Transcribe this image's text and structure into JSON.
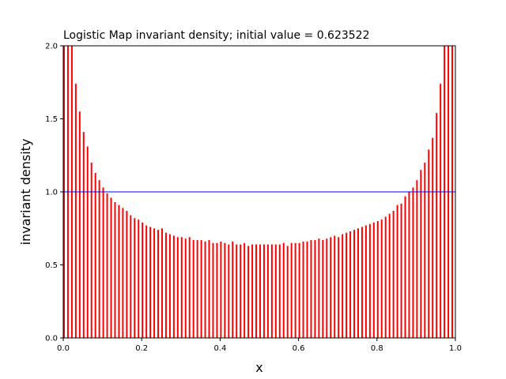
{
  "chart_data": {
    "type": "bar",
    "title": "Logistic Map invariant density; initial value = 0.623522",
    "xlabel": "x",
    "ylabel": "invariant density",
    "xlim": [
      0,
      1
    ],
    "ylim": [
      0,
      2
    ],
    "xticks": [
      "0.0",
      "0.2",
      "0.4",
      "0.6",
      "0.8",
      "1.0"
    ],
    "yticks": [
      "0.0",
      "0.5",
      "1.0",
      "1.5",
      "2.0"
    ],
    "bar_color": "#ff0000",
    "bar_width": 0.004,
    "reference_line": {
      "y": 1.0,
      "color": "#0000ff"
    },
    "x": [
      0.0,
      0.01,
      0.02,
      0.03,
      0.04,
      0.05,
      0.06,
      0.07,
      0.08,
      0.09,
      0.1,
      0.11,
      0.12,
      0.13,
      0.14,
      0.15,
      0.16,
      0.17,
      0.18,
      0.19,
      0.2,
      0.21,
      0.22,
      0.23,
      0.24,
      0.25,
      0.26,
      0.27,
      0.28,
      0.29,
      0.3,
      0.31,
      0.32,
      0.33,
      0.34,
      0.35,
      0.36,
      0.37,
      0.38,
      0.39,
      0.4,
      0.41,
      0.42,
      0.43,
      0.44,
      0.45,
      0.46,
      0.47,
      0.48,
      0.49,
      0.5,
      0.51,
      0.52,
      0.53,
      0.54,
      0.55,
      0.56,
      0.57,
      0.58,
      0.59,
      0.6,
      0.61,
      0.62,
      0.63,
      0.64,
      0.65,
      0.66,
      0.67,
      0.68,
      0.69,
      0.7,
      0.71,
      0.72,
      0.73,
      0.74,
      0.75,
      0.76,
      0.77,
      0.78,
      0.79,
      0.8,
      0.81,
      0.82,
      0.83,
      0.84,
      0.85,
      0.86,
      0.87,
      0.88,
      0.89,
      0.9,
      0.91,
      0.92,
      0.93,
      0.94,
      0.95,
      0.96,
      0.97,
      0.98,
      0.99
    ],
    "values": [
      2.0,
      2.0,
      2.0,
      1.74,
      1.55,
      1.41,
      1.31,
      1.2,
      1.13,
      1.08,
      1.03,
      0.99,
      0.96,
      0.93,
      0.91,
      0.89,
      0.87,
      0.84,
      0.82,
      0.81,
      0.79,
      0.77,
      0.76,
      0.75,
      0.74,
      0.75,
      0.72,
      0.71,
      0.7,
      0.69,
      0.69,
      0.68,
      0.69,
      0.67,
      0.67,
      0.67,
      0.66,
      0.67,
      0.65,
      0.65,
      0.66,
      0.65,
      0.64,
      0.66,
      0.64,
      0.64,
      0.65,
      0.63,
      0.64,
      0.64,
      0.64,
      0.64,
      0.64,
      0.64,
      0.64,
      0.64,
      0.65,
      0.63,
      0.65,
      0.65,
      0.65,
      0.66,
      0.66,
      0.67,
      0.67,
      0.68,
      0.67,
      0.68,
      0.69,
      0.7,
      0.69,
      0.71,
      0.72,
      0.73,
      0.74,
      0.75,
      0.76,
      0.77,
      0.78,
      0.79,
      0.8,
      0.81,
      0.83,
      0.85,
      0.87,
      0.91,
      0.92,
      0.97,
      1.0,
      1.03,
      1.08,
      1.15,
      1.2,
      1.29,
      1.37,
      1.54,
      1.74,
      2.0,
      2.0,
      2.0
    ]
  }
}
